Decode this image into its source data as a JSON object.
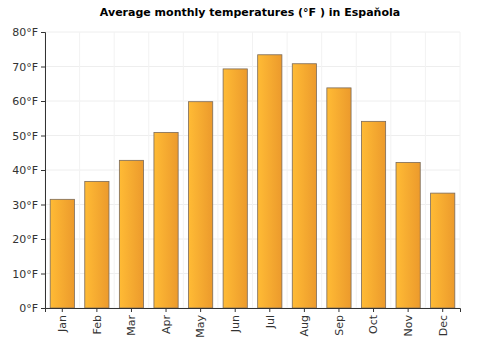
{
  "chart_data": {
    "type": "bar",
    "title": "Average monthly temperatures (°F ) in Espaňola",
    "categories": [
      "Jan",
      "Feb",
      "Mar",
      "Apr",
      "May",
      "Jun",
      "Jul",
      "Aug",
      "Sep",
      "Oct",
      "Nov",
      "Dec"
    ],
    "values": [
      31.5,
      36.7,
      42.8,
      50.9,
      59.8,
      69.3,
      73.4,
      70.8,
      63.8,
      54.1,
      42.2,
      33.3
    ],
    "color": "#f9a22e",
    "ylim": [
      0,
      80
    ],
    "yticks": [
      {
        "value": 0,
        "label": "0°F"
      },
      {
        "value": 10,
        "label": "10°F"
      },
      {
        "value": 20,
        "label": "20°F"
      },
      {
        "value": 30,
        "label": "30°F"
      },
      {
        "value": 40,
        "label": "40°F"
      },
      {
        "value": 50,
        "label": "50°F"
      },
      {
        "value": 60,
        "label": "60°F"
      },
      {
        "value": 70,
        "label": "70°F"
      },
      {
        "value": 80,
        "label": "80°F"
      }
    ],
    "grid": true
  }
}
